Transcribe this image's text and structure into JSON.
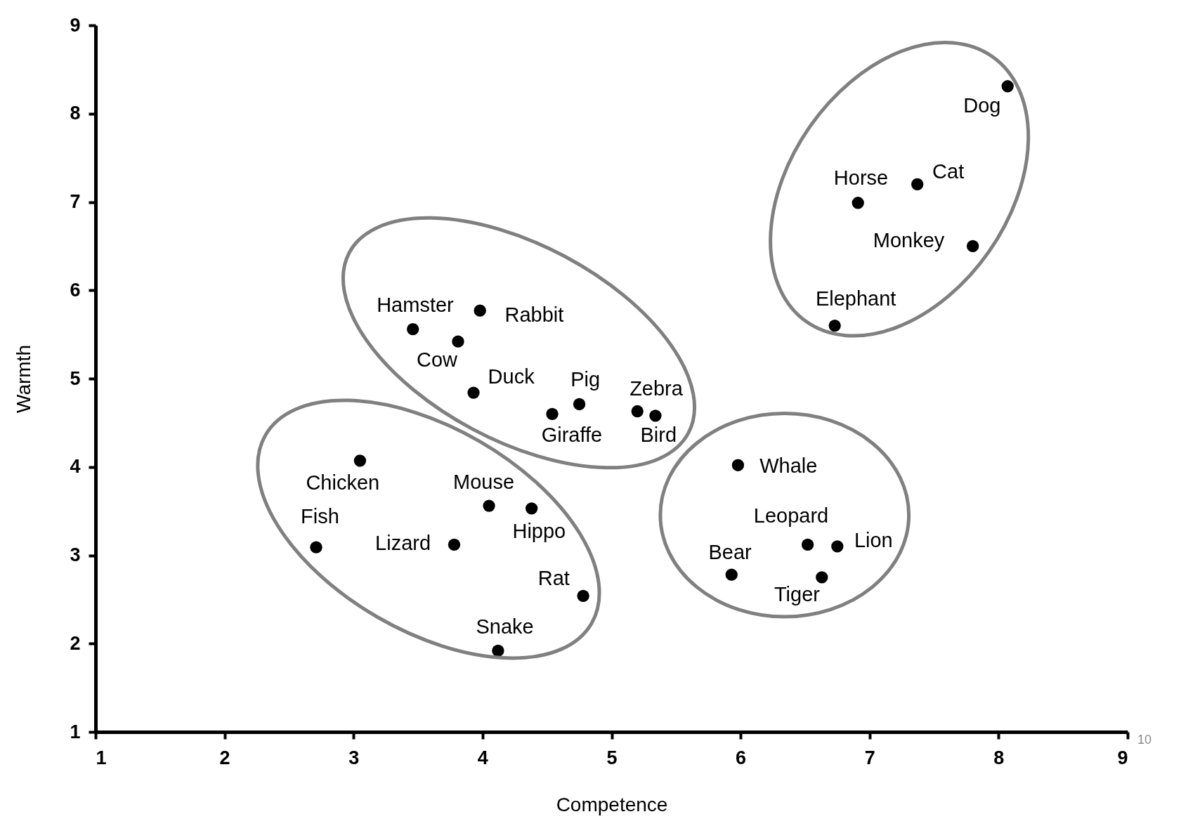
{
  "chart_data": {
    "type": "scatter",
    "xlabel": "Competence",
    "ylabel": "Warmth",
    "xlim": [
      1,
      9
    ],
    "xticks": [
      1,
      2,
      3,
      4,
      5,
      6,
      7,
      8,
      9
    ],
    "ylim": [
      1,
      9
    ],
    "yticks": [
      1,
      2,
      3,
      4,
      5,
      6,
      7,
      8,
      9
    ],
    "marker": "circle",
    "x": [
      8.07,
      7.37,
      6.91,
      7.8,
      6.73,
      3.46,
      3.98,
      3.81,
      3.93,
      4.75,
      4.54,
      5.2,
      5.34,
      3.05,
      2.71,
      3.78,
      4.05,
      4.38,
      4.78,
      4.12,
      5.98,
      6.52,
      6.75,
      5.93,
      6.63
    ],
    "series": [
      {
        "color": "#000000",
        "values": [
          8.31,
          7.2,
          6.99,
          6.5,
          5.6,
          5.56,
          5.77,
          5.42,
          4.84,
          4.71,
          4.6,
          4.63,
          4.58,
          4.07,
          3.09,
          3.12,
          3.56,
          3.53,
          2.54,
          1.92,
          4.02,
          3.12,
          3.1,
          2.78,
          2.75
        ]
      }
    ],
    "annotations": [
      {
        "text": "Dog",
        "x": 8.07,
        "y": 8.31
      },
      {
        "text": "Cat",
        "x": 7.37,
        "y": 7.2
      },
      {
        "text": "Horse",
        "x": 6.91,
        "y": 6.99
      },
      {
        "text": "Monkey",
        "x": 7.8,
        "y": 6.5
      },
      {
        "text": "Elephant",
        "x": 6.73,
        "y": 5.6
      },
      {
        "text": "Hamster",
        "x": 3.46,
        "y": 5.56
      },
      {
        "text": "Rabbit",
        "x": 3.98,
        "y": 5.77
      },
      {
        "text": "Cow",
        "x": 3.81,
        "y": 5.42
      },
      {
        "text": "Duck",
        "x": 3.93,
        "y": 4.84
      },
      {
        "text": "Pig",
        "x": 4.75,
        "y": 4.71
      },
      {
        "text": "Giraffe",
        "x": 4.54,
        "y": 4.6
      },
      {
        "text": "Zebra",
        "x": 5.2,
        "y": 4.63
      },
      {
        "text": "Bird",
        "x": 5.34,
        "y": 4.58
      },
      {
        "text": "Chicken",
        "x": 3.05,
        "y": 4.07
      },
      {
        "text": "Fish",
        "x": 2.71,
        "y": 3.09
      },
      {
        "text": "Lizard",
        "x": 3.78,
        "y": 3.12
      },
      {
        "text": "Mouse",
        "x": 4.05,
        "y": 3.56
      },
      {
        "text": "Hippo",
        "x": 4.38,
        "y": 3.53
      },
      {
        "text": "Rat",
        "x": 4.78,
        "y": 2.54
      },
      {
        "text": "Snake",
        "x": 4.12,
        "y": 1.92
      },
      {
        "text": "Whale",
        "x": 5.98,
        "y": 4.02
      },
      {
        "text": "Leopard",
        "x": 6.52,
        "y": 3.12
      },
      {
        "text": "Lion",
        "x": 6.75,
        "y": 3.1
      },
      {
        "text": "Bear",
        "x": 5.93,
        "y": 2.78
      },
      {
        "text": "Tiger",
        "x": 6.63,
        "y": 2.75
      },
      "10"
    ]
  }
}
